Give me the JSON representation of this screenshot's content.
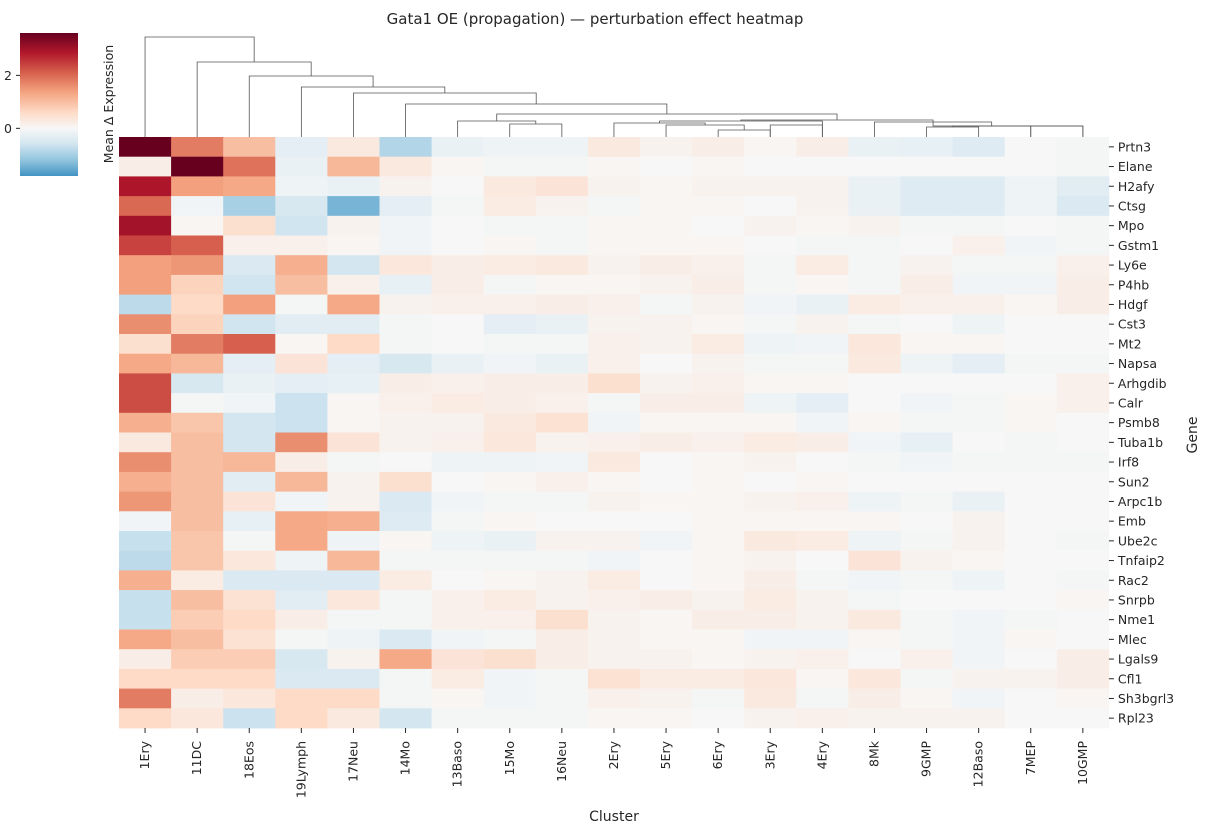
{
  "chart_data": {
    "type": "heatmap",
    "title": "Gata1 OE (propagation) — perturbation effect heatmap",
    "xlabel": "Cluster",
    "ylabel": "Gene",
    "colorbar_label": "Mean Δ Expression",
    "colorbar_ticks": [
      2,
      0
    ],
    "colorbar_range": [
      -1.8,
      3.6
    ],
    "colormap": "RdBu_r",
    "color_stops": [
      "#4393c3",
      "#92c5de",
      "#d1e5f0",
      "#f7f7f7",
      "#fddbc7",
      "#f4a582",
      "#d6604d",
      "#b2182b",
      "#67001f"
    ],
    "columns": [
      "1Ery",
      "11DC",
      "18Eos",
      "19Lymph",
      "17Neu",
      "14Mo",
      "13Baso",
      "15Mo",
      "16Neu",
      "2Ery",
      "5Ery",
      "6Ery",
      "3Ery",
      "4Ery",
      "8Mk",
      "9GMP",
      "12Baso",
      "7MEP",
      "10GMP"
    ],
    "rows": [
      "Prtn3",
      "Elane",
      "H2afy",
      "Ctsg",
      "Mpo",
      "Gstm1",
      "Ly6e",
      "P4hb",
      "Hdgf",
      "Cst3",
      "Mt2",
      "Napsa",
      "Arhgdib",
      "Calr",
      "Psmb8",
      "Tuba1b",
      "Irf8",
      "Sun2",
      "Arpc1b",
      "Emb",
      "Ube2c",
      "Tnfaip2",
      "Rac2",
      "Snrpb",
      "Nme1",
      "Mlec",
      "Lgals9",
      "Cfl1",
      "Sh3bgrl3",
      "Rpl23"
    ],
    "values": [
      [
        3.6,
        1.8,
        1.0,
        -0.3,
        0.3,
        -0.9,
        -0.2,
        -0.15,
        -0.15,
        0.3,
        0.1,
        0.2,
        0.05,
        0.2,
        -0.2,
        -0.25,
        -0.4,
        0.0,
        -0.05
      ],
      [
        0.2,
        3.6,
        1.9,
        -0.2,
        1.1,
        0.3,
        0.05,
        -0.05,
        -0.05,
        0.05,
        0.0,
        0.05,
        0.0,
        0.0,
        0.0,
        0.0,
        0.0,
        0.0,
        -0.05
      ],
      [
        2.9,
        1.4,
        1.3,
        -0.15,
        -0.2,
        0.1,
        0.0,
        0.3,
        0.4,
        0.1,
        0.05,
        0.1,
        0.1,
        0.1,
        -0.2,
        -0.4,
        -0.4,
        -0.15,
        -0.35
      ],
      [
        2.0,
        -0.1,
        -1.0,
        -0.5,
        -1.4,
        -0.3,
        -0.05,
        0.25,
        0.1,
        -0.05,
        0.05,
        0.05,
        0.0,
        0.1,
        -0.2,
        -0.4,
        -0.4,
        -0.15,
        -0.45
      ],
      [
        3.0,
        0.05,
        0.5,
        -0.6,
        0.1,
        -0.1,
        0.0,
        -0.05,
        -0.05,
        0.05,
        0.05,
        0.0,
        0.1,
        0.05,
        0.1,
        -0.05,
        -0.05,
        0.0,
        -0.05
      ],
      [
        2.4,
        2.1,
        0.15,
        0.15,
        0.05,
        -0.1,
        0.0,
        0.05,
        -0.05,
        0.05,
        0.05,
        0.05,
        0.0,
        -0.05,
        -0.05,
        0.0,
        0.15,
        -0.1,
        -0.05
      ],
      [
        1.4,
        1.5,
        -0.45,
        1.2,
        -0.55,
        0.35,
        0.2,
        0.25,
        0.3,
        0.1,
        0.2,
        0.15,
        -0.05,
        0.25,
        -0.05,
        0.1,
        -0.05,
        -0.05,
        0.15
      ],
      [
        1.4,
        0.7,
        -0.6,
        1.0,
        0.15,
        -0.25,
        0.2,
        -0.05,
        0.05,
        0.05,
        0.1,
        0.2,
        -0.05,
        0.05,
        -0.05,
        0.2,
        -0.1,
        -0.1,
        0.2
      ],
      [
        -0.8,
        0.6,
        1.4,
        -0.05,
        1.3,
        0.1,
        0.15,
        0.15,
        0.2,
        0.15,
        -0.05,
        0.1,
        -0.1,
        -0.2,
        0.25,
        0.15,
        0.15,
        0.05,
        0.2
      ],
      [
        1.6,
        0.7,
        -0.6,
        -0.35,
        -0.35,
        -0.05,
        0.0,
        -0.3,
        -0.2,
        0.1,
        0.1,
        0.05,
        -0.05,
        0.1,
        -0.05,
        0.0,
        -0.15,
        0.0,
        0.0
      ],
      [
        0.5,
        1.8,
        2.1,
        0.05,
        0.6,
        -0.05,
        0.0,
        -0.05,
        -0.05,
        0.15,
        0.1,
        0.25,
        -0.15,
        -0.1,
        0.35,
        0.05,
        0.05,
        0.0,
        0.0
      ],
      [
        1.3,
        1.1,
        -0.3,
        0.4,
        -0.3,
        -0.5,
        -0.2,
        -0.1,
        -0.2,
        0.15,
        0.0,
        0.1,
        -0.05,
        -0.05,
        0.3,
        -0.15,
        -0.3,
        -0.05,
        -0.05
      ],
      [
        2.3,
        -0.5,
        -0.2,
        -0.3,
        -0.25,
        0.2,
        0.15,
        0.2,
        0.2,
        0.5,
        0.1,
        0.15,
        0.05,
        0.05,
        0.0,
        0.0,
        0.0,
        0.0,
        0.15
      ],
      [
        2.3,
        -0.05,
        -0.1,
        -0.65,
        0.05,
        0.15,
        0.25,
        0.2,
        0.15,
        -0.05,
        0.2,
        0.2,
        -0.15,
        -0.3,
        0.0,
        -0.1,
        -0.05,
        0.05,
        0.15
      ],
      [
        1.2,
        0.9,
        -0.55,
        -0.65,
        0.05,
        0.1,
        0.1,
        0.3,
        0.45,
        -0.1,
        0.05,
        0.05,
        0.05,
        -0.1,
        0.05,
        -0.05,
        -0.05,
        0.05,
        0.0
      ],
      [
        0.3,
        1.0,
        -0.55,
        1.6,
        0.4,
        0.1,
        0.15,
        0.35,
        0.1,
        0.15,
        0.2,
        0.15,
        0.25,
        0.2,
        -0.1,
        -0.25,
        0.0,
        -0.05,
        0.0
      ],
      [
        1.6,
        1.0,
        1.1,
        0.2,
        -0.05,
        0.0,
        -0.15,
        -0.15,
        -0.1,
        0.3,
        0.0,
        0.05,
        0.1,
        0.0,
        -0.05,
        -0.1,
        -0.05,
        -0.05,
        -0.05
      ],
      [
        1.2,
        1.0,
        -0.35,
        1.1,
        0.1,
        0.5,
        0.0,
        0.05,
        0.15,
        0.05,
        0.0,
        0.05,
        0.0,
        0.05,
        0.0,
        0.0,
        0.0,
        0.0,
        0.0
      ],
      [
        1.5,
        1.0,
        0.4,
        -0.1,
        0.1,
        -0.45,
        -0.1,
        -0.05,
        -0.05,
        0.1,
        0.05,
        0.05,
        0.1,
        0.15,
        -0.15,
        -0.05,
        -0.2,
        0.0,
        0.0
      ],
      [
        -0.1,
        1.0,
        -0.25,
        1.3,
        1.2,
        -0.4,
        -0.05,
        0.05,
        0.0,
        0.0,
        0.0,
        0.05,
        0.05,
        0.05,
        0.05,
        0.0,
        0.1,
        0.0,
        0.0
      ],
      [
        -0.7,
        0.9,
        -0.05,
        1.3,
        -0.15,
        0.05,
        -0.15,
        -0.2,
        0.1,
        0.1,
        -0.1,
        0.05,
        0.3,
        0.25,
        -0.15,
        -0.05,
        0.1,
        0.0,
        -0.05
      ],
      [
        -0.8,
        0.9,
        0.35,
        -0.15,
        1.1,
        -0.05,
        -0.05,
        -0.05,
        -0.05,
        -0.1,
        0.0,
        0.05,
        0.1,
        0.0,
        0.4,
        0.1,
        0.05,
        0.0,
        0.0
      ],
      [
        1.2,
        0.25,
        -0.45,
        -0.45,
        -0.45,
        0.25,
        0.0,
        0.05,
        0.1,
        0.25,
        0.0,
        0.05,
        0.2,
        -0.05,
        -0.1,
        -0.05,
        -0.15,
        0.0,
        -0.05
      ],
      [
        -0.7,
        1.0,
        0.45,
        -0.35,
        0.35,
        -0.05,
        0.15,
        0.25,
        0.1,
        0.15,
        0.2,
        0.1,
        0.25,
        0.1,
        -0.05,
        0.0,
        0.0,
        0.0,
        0.05
      ],
      [
        -0.7,
        0.8,
        0.6,
        0.2,
        -0.05,
        -0.05,
        0.15,
        0.15,
        0.5,
        0.1,
        0.05,
        0.2,
        0.2,
        0.1,
        0.3,
        -0.05,
        -0.1,
        -0.05,
        0.0
      ],
      [
        1.3,
        1.0,
        0.45,
        -0.05,
        -0.15,
        -0.45,
        -0.1,
        -0.05,
        0.2,
        0.1,
        0.05,
        0.05,
        -0.1,
        -0.1,
        0.05,
        -0.05,
        -0.1,
        0.05,
        0.0
      ],
      [
        0.2,
        0.8,
        0.8,
        -0.5,
        0.1,
        1.3,
        0.4,
        0.5,
        0.2,
        0.1,
        0.1,
        0.05,
        0.1,
        0.15,
        0.0,
        0.15,
        -0.1,
        0.0,
        0.2
      ],
      [
        0.6,
        0.6,
        0.6,
        -0.45,
        -0.45,
        -0.05,
        0.25,
        -0.1,
        -0.05,
        0.45,
        0.25,
        0.25,
        0.35,
        0.05,
        0.35,
        -0.05,
        0.1,
        0.1,
        0.2
      ],
      [
        1.8,
        0.2,
        0.35,
        0.6,
        0.6,
        -0.05,
        0.05,
        -0.1,
        -0.05,
        0.15,
        0.1,
        -0.05,
        0.3,
        -0.05,
        0.2,
        0.05,
        -0.1,
        0.0,
        0.05
      ],
      [
        0.6,
        0.35,
        -0.65,
        0.6,
        0.3,
        -0.55,
        -0.05,
        -0.05,
        -0.05,
        0.05,
        0.05,
        0.0,
        0.1,
        0.15,
        0.1,
        0.1,
        0.1,
        0.0,
        0.0
      ]
    ]
  }
}
